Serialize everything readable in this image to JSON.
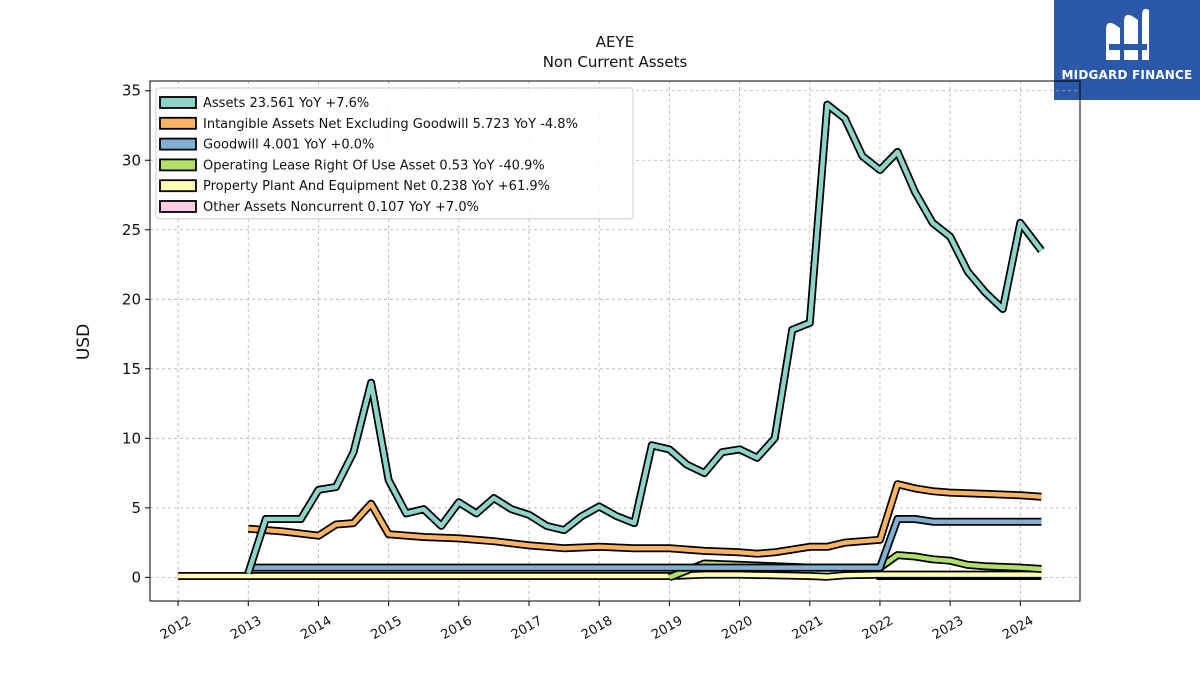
{
  "header": {
    "title": "AEYE",
    "subtitle": "Non Current  Assets"
  },
  "logo": {
    "text": "MIDGARD FINANCE",
    "bg": "#2b58a8"
  },
  "chart_data": {
    "type": "line",
    "title": "AEYE",
    "subtitle": "Non Current  Assets",
    "xlabel": "",
    "ylabel": "USD",
    "xlim": [
      2011.6,
      2024.85
    ],
    "ylim": [
      -1.7,
      35.7
    ],
    "yticks": [
      0,
      5,
      10,
      15,
      20,
      25,
      30,
      35
    ],
    "xticks": [
      "2012",
      "2013",
      "2014",
      "2015",
      "2016",
      "2017",
      "2018",
      "2019",
      "2020",
      "2021",
      "2022",
      "2023",
      "2024"
    ],
    "grid": true,
    "legend_position": "top-left",
    "series": [
      {
        "name": "Assets  23.561 YoY +7.6%",
        "color": "#8dd3c7",
        "points": [
          [
            2013.0,
            0.3
          ],
          [
            2013.25,
            4.2
          ],
          [
            2013.5,
            4.2
          ],
          [
            2013.75,
            4.2
          ],
          [
            2014.0,
            6.3
          ],
          [
            2014.25,
            6.5
          ],
          [
            2014.5,
            9.0
          ],
          [
            2014.75,
            14.0
          ],
          [
            2015.0,
            7.0
          ],
          [
            2015.25,
            4.6
          ],
          [
            2015.5,
            4.9
          ],
          [
            2015.75,
            3.7
          ],
          [
            2016.0,
            5.4
          ],
          [
            2016.25,
            4.6
          ],
          [
            2016.5,
            5.7
          ],
          [
            2016.75,
            4.9
          ],
          [
            2017.0,
            4.5
          ],
          [
            2017.25,
            3.7
          ],
          [
            2017.5,
            3.4
          ],
          [
            2017.75,
            4.4
          ],
          [
            2018.0,
            5.1
          ],
          [
            2018.25,
            4.4
          ],
          [
            2018.5,
            3.9
          ],
          [
            2018.75,
            9.5
          ],
          [
            2019.0,
            9.2
          ],
          [
            2019.25,
            8.1
          ],
          [
            2019.5,
            7.5
          ],
          [
            2019.75,
            9.0
          ],
          [
            2020.0,
            9.2
          ],
          [
            2020.25,
            8.6
          ],
          [
            2020.5,
            10.0
          ],
          [
            2020.75,
            17.8
          ],
          [
            2021.0,
            18.3
          ],
          [
            2021.25,
            34.0
          ],
          [
            2021.5,
            33.0
          ],
          [
            2021.75,
            30.3
          ],
          [
            2022.0,
            29.3
          ],
          [
            2022.25,
            30.6
          ],
          [
            2022.5,
            27.7
          ],
          [
            2022.75,
            25.5
          ],
          [
            2023.0,
            24.5
          ],
          [
            2023.25,
            22.0
          ],
          [
            2023.5,
            20.5
          ],
          [
            2023.75,
            19.3
          ],
          [
            2024.0,
            25.5
          ],
          [
            2024.3,
            23.5
          ]
        ]
      },
      {
        "name": "Intangible Assets Net Excluding Goodwill  5.723 YoY -4.8%",
        "color": "#fdb462",
        "points": [
          [
            2013.0,
            3.5
          ],
          [
            2013.5,
            3.3
          ],
          [
            2014.0,
            3.0
          ],
          [
            2014.25,
            3.8
          ],
          [
            2014.5,
            3.9
          ],
          [
            2014.75,
            5.3
          ],
          [
            2015.0,
            3.1
          ],
          [
            2015.5,
            2.9
          ],
          [
            2016.0,
            2.8
          ],
          [
            2016.5,
            2.6
          ],
          [
            2017.0,
            2.3
          ],
          [
            2017.5,
            2.1
          ],
          [
            2018.0,
            2.2
          ],
          [
            2018.5,
            2.1
          ],
          [
            2019.0,
            2.1
          ],
          [
            2019.5,
            1.9
          ],
          [
            2020.0,
            1.8
          ],
          [
            2020.25,
            1.7
          ],
          [
            2020.5,
            1.8
          ],
          [
            2021.0,
            2.2
          ],
          [
            2021.25,
            2.2
          ],
          [
            2021.5,
            2.5
          ],
          [
            2022.0,
            2.7
          ],
          [
            2022.25,
            6.7
          ],
          [
            2022.5,
            6.4
          ],
          [
            2022.75,
            6.2
          ],
          [
            2023.0,
            6.1
          ],
          [
            2023.5,
            6.0
          ],
          [
            2024.0,
            5.9
          ],
          [
            2024.3,
            5.8
          ]
        ]
      },
      {
        "name": "Goodwill  4.001 YoY +0.0%",
        "color": "#80b1d3",
        "points": [
          [
            2013.0,
            0.7
          ],
          [
            2021.75,
            0.7
          ],
          [
            2022.0,
            0.7
          ],
          [
            2022.25,
            4.2
          ],
          [
            2022.5,
            4.2
          ],
          [
            2022.75,
            4.0
          ],
          [
            2024.3,
            4.0
          ]
        ]
      },
      {
        "name": "Operating Lease Right Of Use Asset  0.53 YoY -40.9%",
        "color": "#b3de69",
        "points": [
          [
            2019.0,
            0.0
          ],
          [
            2019.5,
            1.0
          ],
          [
            2020.0,
            0.9
          ],
          [
            2020.5,
            0.8
          ],
          [
            2021.0,
            0.7
          ],
          [
            2021.5,
            0.7
          ],
          [
            2022.0,
            0.7
          ],
          [
            2022.25,
            1.6
          ],
          [
            2022.5,
            1.5
          ],
          [
            2022.75,
            1.3
          ],
          [
            2023.0,
            1.2
          ],
          [
            2023.25,
            0.9
          ],
          [
            2023.5,
            0.8
          ],
          [
            2024.0,
            0.7
          ],
          [
            2024.3,
            0.6
          ]
        ]
      },
      {
        "name": "Property Plant And Equipment Net  0.238 YoY +61.9%",
        "color": "#ffffb3",
        "points": [
          [
            2012.0,
            0.1
          ],
          [
            2013.0,
            0.1
          ],
          [
            2015.0,
            0.1
          ],
          [
            2017.0,
            0.1
          ],
          [
            2018.0,
            0.1
          ],
          [
            2019.0,
            0.1
          ],
          [
            2019.5,
            0.2
          ],
          [
            2020.0,
            0.2
          ],
          [
            2021.0,
            0.1
          ],
          [
            2021.25,
            0.05
          ],
          [
            2021.5,
            0.15
          ],
          [
            2022.0,
            0.2
          ],
          [
            2023.0,
            0.2
          ],
          [
            2024.3,
            0.2
          ]
        ]
      },
      {
        "name": "Other Assets Noncurrent  0.107 YoY +7.0%",
        "color": "#fccde5",
        "points": [
          [
            2021.95,
            0.1
          ],
          [
            2024.3,
            0.1
          ]
        ]
      }
    ]
  }
}
